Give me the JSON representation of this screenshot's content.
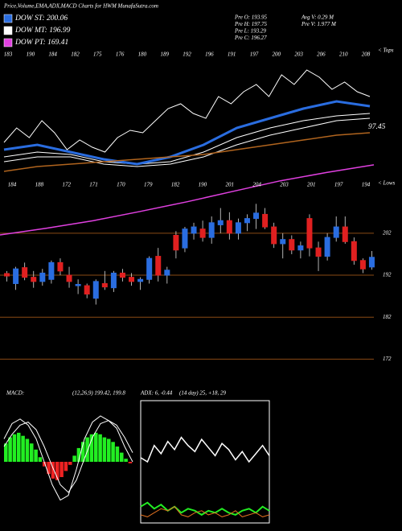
{
  "header": {
    "title": "Price,Volume,EMA,ADX,MACD Charts for HWM MunafaSutra.com",
    "legend": [
      {
        "label": "DOW ST: 200.06",
        "color": "#2a6de0"
      },
      {
        "label": "DOW MT: 196.99",
        "color": "#ffffff"
      },
      {
        "label": "DOW PT: 169.41",
        "color": "#e040e0"
      }
    ],
    "info_left": [
      "Pre  O: 193.95",
      "Pre  H: 197.75",
      "Pre  L: 193.29",
      "Pre  C: 196.27"
    ],
    "info_right": [
      "Avg V: 0.29 M",
      "Pre  V: 1.977 M"
    ]
  },
  "chart_data": [
    {
      "type": "candlestick",
      "up_color": "#2a6de0",
      "down_color": "#e02020",
      "grid_color": "#8a4a14",
      "ylim": [
        169,
        220
      ],
      "yticks": [
        172,
        182,
        192,
        202
      ],
      "candles": [
        {
          "o": 192.4,
          "h": 193,
          "l": 190.5,
          "c": 191.8
        },
        {
          "o": 190,
          "h": 194,
          "l": 188.5,
          "c": 193.5
        },
        {
          "o": 193.8,
          "h": 195,
          "l": 190.8,
          "c": 191.5
        },
        {
          "o": 191.5,
          "h": 193,
          "l": 189,
          "c": 190.5
        },
        {
          "o": 190.5,
          "h": 193.5,
          "l": 189.5,
          "c": 192.5
        },
        {
          "o": 191,
          "h": 195.5,
          "l": 190,
          "c": 195
        },
        {
          "o": 195,
          "h": 196,
          "l": 192,
          "c": 193
        },
        {
          "o": 192,
          "h": 194,
          "l": 189,
          "c": 190.5
        },
        {
          "o": 189.5,
          "h": 191,
          "l": 187.5,
          "c": 189.8
        },
        {
          "o": 189.5,
          "h": 190,
          "l": 186.5,
          "c": 187.5
        },
        {
          "o": 186.5,
          "h": 191,
          "l": 185,
          "c": 190.5
        },
        {
          "o": 190,
          "h": 193,
          "l": 188.5,
          "c": 189.2
        },
        {
          "o": 189,
          "h": 193,
          "l": 188,
          "c": 192.5
        },
        {
          "o": 192.5,
          "h": 193.5,
          "l": 190.5,
          "c": 191.5
        },
        {
          "o": 191.5,
          "h": 192.5,
          "l": 189.5,
          "c": 190.5
        },
        {
          "o": 190.5,
          "h": 191.5,
          "l": 188.5,
          "c": 191
        },
        {
          "o": 191,
          "h": 196.5,
          "l": 190,
          "c": 196
        },
        {
          "o": 196.5,
          "h": 198.5,
          "l": 190.5,
          "c": 192
        },
        {
          "o": 192,
          "h": 194,
          "l": 190,
          "c": 193.2
        },
        {
          "o": 201.5,
          "h": 202.5,
          "l": 196,
          "c": 198
        },
        {
          "o": 198.5,
          "h": 203.5,
          "l": 197.5,
          "c": 203
        },
        {
          "o": 202,
          "h": 204.5,
          "l": 200.5,
          "c": 203.5
        },
        {
          "o": 203,
          "h": 205,
          "l": 200,
          "c": 201
        },
        {
          "o": 201,
          "h": 206,
          "l": 199.5,
          "c": 204.5
        },
        {
          "o": 204,
          "h": 208,
          "l": 202,
          "c": 205
        },
        {
          "o": 205,
          "h": 207,
          "l": 200.5,
          "c": 202
        },
        {
          "o": 202,
          "h": 205.5,
          "l": 200.5,
          "c": 204.5
        },
        {
          "o": 204.5,
          "h": 206.5,
          "l": 202.5,
          "c": 205.5
        },
        {
          "o": 205.5,
          "h": 209,
          "l": 203,
          "c": 206.8
        },
        {
          "o": 206.5,
          "h": 208,
          "l": 203,
          "c": 203.5
        },
        {
          "o": 203.5,
          "h": 204.5,
          "l": 198.5,
          "c": 199.5
        },
        {
          "o": 199.5,
          "h": 202,
          "l": 196,
          "c": 200.5
        },
        {
          "o": 200.5,
          "h": 201.5,
          "l": 197,
          "c": 198
        },
        {
          "o": 198,
          "h": 200,
          "l": 196,
          "c": 199
        },
        {
          "o": 205.5,
          "h": 206.5,
          "l": 196.5,
          "c": 198.5
        },
        {
          "o": 198.5,
          "h": 200,
          "l": 193,
          "c": 196.5
        },
        {
          "o": 196.5,
          "h": 202,
          "l": 195.5,
          "c": 201
        },
        {
          "o": 201,
          "h": 206,
          "l": 200,
          "c": 203.5
        },
        {
          "o": 203.5,
          "h": 206,
          "l": 199.5,
          "c": 200
        },
        {
          "o": 200,
          "h": 201,
          "l": 194.5,
          "c": 195.5
        },
        {
          "o": 195.5,
          "h": 196,
          "l": 192.5,
          "c": 193.5
        },
        {
          "o": 193.95,
          "h": 197.75,
          "l": 193.29,
          "c": 196.27
        }
      ],
      "series": [
        {
          "color": "#e040e0",
          "values": [
            201.6,
            203.2,
            205,
            207.2,
            209.5,
            212,
            214.5,
            216.5,
            218.3
          ]
        }
      ]
    },
    {
      "type": "line",
      "ylim": [
        150,
        205
      ],
      "end_label": "97.45",
      "top_labels": [
        183,
        190,
        184,
        182,
        175,
        176,
        180,
        189,
        192,
        196,
        191,
        197,
        200,
        203,
        206,
        210,
        208
      ],
      "bottom_labels": [
        184,
        188,
        172,
        171,
        170,
        179,
        182,
        190,
        201,
        204,
        203,
        201,
        197,
        194
      ],
      "top_note": "< Tops",
      "bottom_note": "< Lows",
      "series": [
        {
          "color": "#ffffff",
          "width": 1,
          "values": [
            166,
            172,
            168,
            175,
            170,
            163,
            167,
            164,
            162,
            168,
            171,
            170,
            175,
            180,
            182,
            178,
            176,
            185,
            182,
            187,
            190,
            185,
            194,
            190,
            196,
            193,
            188,
            191,
            187,
            185
          ]
        },
        {
          "color": "#ffffff",
          "width": 1,
          "values": [
            158,
            160,
            160,
            157,
            156,
            157,
            160,
            165,
            169,
            172,
            175,
            176
          ]
        },
        {
          "color": "#ffffff",
          "width": 1,
          "values": [
            160,
            162,
            161,
            158,
            157,
            158,
            162,
            168,
            172,
            175,
            177,
            178
          ]
        },
        {
          "color": "#2a6de0",
          "width": 3,
          "values": [
            163,
            165,
            162,
            159,
            157,
            160,
            165,
            172,
            176,
            180,
            183,
            181
          ]
        },
        {
          "color": "#b0641e",
          "width": 1.5,
          "values": [
            154,
            156,
            157,
            158,
            159,
            160,
            161,
            163,
            165,
            167,
            169,
            170
          ]
        }
      ]
    },
    {
      "type": "bar",
      "title": "MACD:",
      "subtitle": "(12,26,9) 199.42, 199.8",
      "ylim": [
        -4,
        4
      ],
      "pos_color": "#22ee22",
      "neg_color": "#ee2222",
      "values": [
        1.2,
        1.6,
        1.8,
        1.9,
        1.7,
        1.5,
        1.2,
        0.8,
        0.3,
        -0.3,
        -0.8,
        -1.1,
        -1.2,
        -1,
        -0.6,
        -0.2,
        0.4,
        0.9,
        1.3,
        1.6,
        1.8,
        1.9,
        1.8,
        1.6,
        1.5,
        1.3,
        1.0,
        0.6,
        0.2,
        -0.1
      ],
      "series": [
        {
          "color": "#ffffff",
          "width": 1,
          "values": [
            1.5,
            2.5,
            2.8,
            2.4,
            1.5,
            0,
            -1.5,
            -2.5,
            -2.2,
            -0.5,
            1.5,
            2.6,
            3.0,
            2.7,
            2.2,
            1.0,
            0.0
          ]
        },
        {
          "color": "#ffffff",
          "width": 1,
          "values": [
            1.0,
            1.8,
            2.4,
            2.6,
            2.1,
            1.0,
            -0.3,
            -1.5,
            -2.0,
            -1.2,
            0.2,
            1.6,
            2.5,
            2.7,
            2.4,
            1.6,
            0.6
          ]
        }
      ]
    },
    {
      "type": "line",
      "title": "ADX: 6, -0.44",
      "subtitle": "(14 day) 25, +18, 29",
      "ylim": [
        0,
        60
      ],
      "frame": true,
      "series": [
        {
          "color": "#ffffff",
          "width": 1.5,
          "values": [
            32,
            30,
            38,
            34,
            40,
            36,
            42,
            38,
            35,
            41,
            37,
            33,
            39,
            36,
            31,
            35,
            30,
            34,
            38,
            33
          ]
        },
        {
          "color": "#22ee22",
          "width": 2,
          "values": [
            8,
            10,
            7,
            9,
            6,
            8,
            5,
            7,
            6,
            4,
            6,
            5,
            7,
            5,
            4,
            6,
            7,
            5,
            8,
            6
          ]
        },
        {
          "color": "#e07020",
          "width": 1,
          "values": [
            4,
            3,
            5,
            7,
            6,
            8,
            4,
            3,
            5,
            6,
            4,
            5,
            3,
            4,
            6,
            3,
            4,
            5,
            3,
            4
          ]
        }
      ]
    }
  ]
}
